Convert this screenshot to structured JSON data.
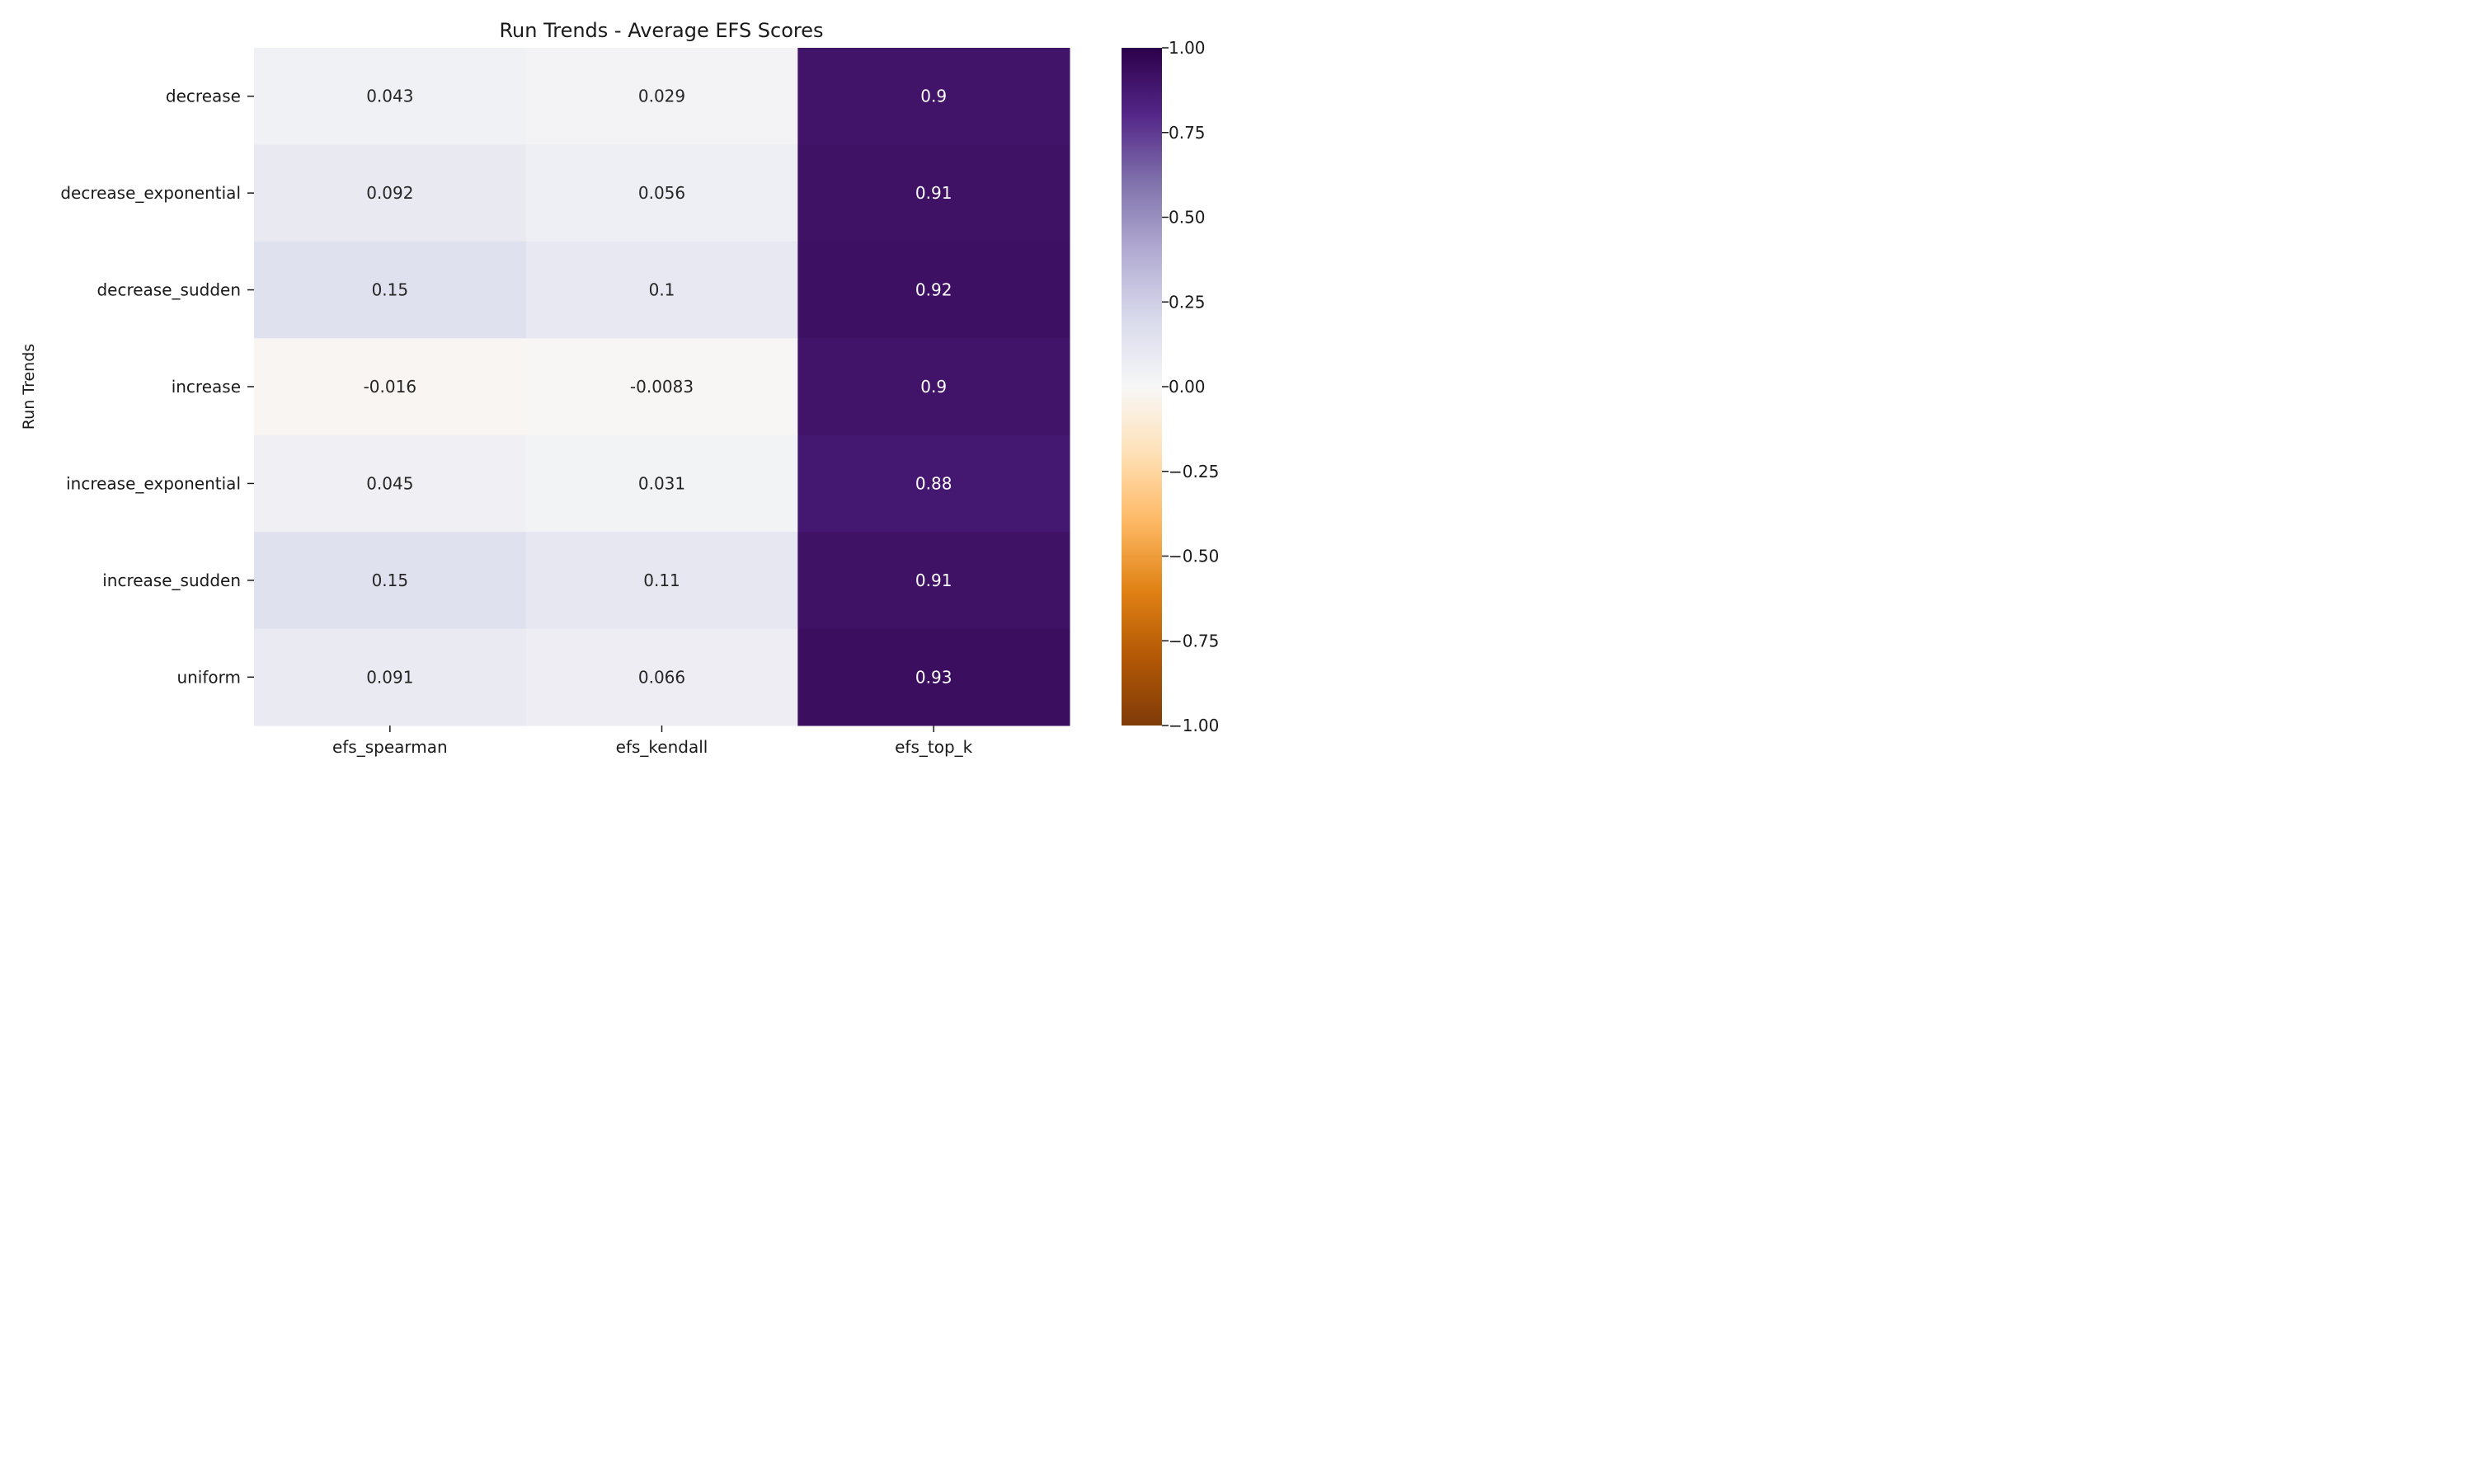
{
  "chart_data": {
    "type": "heatmap",
    "title": "Run Trends - Average EFS Scores",
    "ylabel": "Run Trends",
    "xlabel": "",
    "x_categories": [
      "efs_spearman",
      "efs_kendall",
      "efs_top_k"
    ],
    "y_categories": [
      "decrease",
      "decrease_exponential",
      "decrease_sudden",
      "increase",
      "increase_exponential",
      "increase_sudden",
      "uniform"
    ],
    "values": [
      [
        0.043,
        0.029,
        0.9
      ],
      [
        0.092,
        0.056,
        0.91
      ],
      [
        0.15,
        0.1,
        0.92
      ],
      [
        -0.016,
        -0.0083,
        0.9
      ],
      [
        0.045,
        0.031,
        0.88
      ],
      [
        0.15,
        0.11,
        0.91
      ],
      [
        0.091,
        0.066,
        0.93
      ]
    ],
    "value_labels": [
      [
        "0.043",
        "0.029",
        "0.9"
      ],
      [
        "0.092",
        "0.056",
        "0.91"
      ],
      [
        "0.15",
        "0.1",
        "0.92"
      ],
      [
        "-0.016",
        "-0.0083",
        "0.9"
      ],
      [
        "0.045",
        "0.031",
        "0.88"
      ],
      [
        "0.15",
        "0.11",
        "0.91"
      ],
      [
        "0.091",
        "0.066",
        "0.93"
      ]
    ],
    "colorbar": {
      "colormap": "PuOr",
      "range": [
        -1.0,
        1.0
      ],
      "ticks": [
        1.0,
        0.75,
        0.5,
        0.25,
        0.0,
        -0.25,
        -0.5,
        -0.75,
        -1.0
      ],
      "tick_labels": [
        "1.00",
        "0.75",
        "0.50",
        "0.25",
        "0.00",
        "−0.25",
        "−0.50",
        "−0.75",
        "−1.00"
      ]
    },
    "grid": false
  }
}
